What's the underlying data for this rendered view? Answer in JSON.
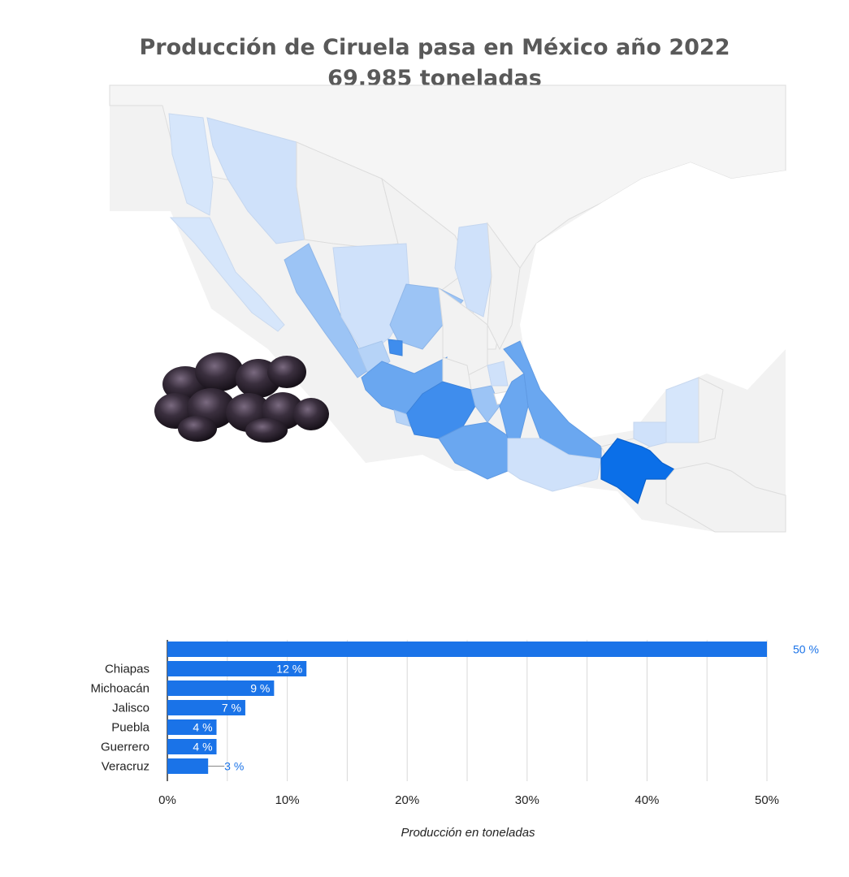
{
  "title": {
    "line1": "Producción de Ciruela pasa en México año 2022",
    "line2": "69,985 toneladas"
  },
  "colors": {
    "bar": "#1a73e8",
    "label_outside": "#1a73e8",
    "map_level_1": "#0b6fe8",
    "map_level_2": "#3f8ded",
    "map_level_3": "#6aa7f0",
    "map_level_4": "#9cc4f5",
    "map_level_5": "#cfe1fa",
    "map_background": "#f2f2f2",
    "map_border": "#dcdcdc"
  },
  "map": {
    "image_description_icon": "dried-prunes-pile"
  },
  "chart_data": {
    "type": "bar",
    "orientation": "horizontal",
    "categories": [
      "",
      "Chiapas",
      "Michoacán",
      "Jalisco",
      "Puebla",
      "Guerrero",
      "Veracruz"
    ],
    "values": [
      50,
      11.6,
      8.9,
      6.5,
      4.1,
      4.1,
      3.4
    ],
    "value_labels": [
      "50 %",
      "12 %",
      "9 %",
      "7 %",
      "4 %",
      "4 %",
      "3 %"
    ],
    "xlim": [
      0,
      50
    ],
    "xticks": [
      "0%",
      "10%",
      "20%",
      "30%",
      "40%",
      "50%"
    ],
    "xlabel": "Producción en toneladas",
    "grid": true
  }
}
